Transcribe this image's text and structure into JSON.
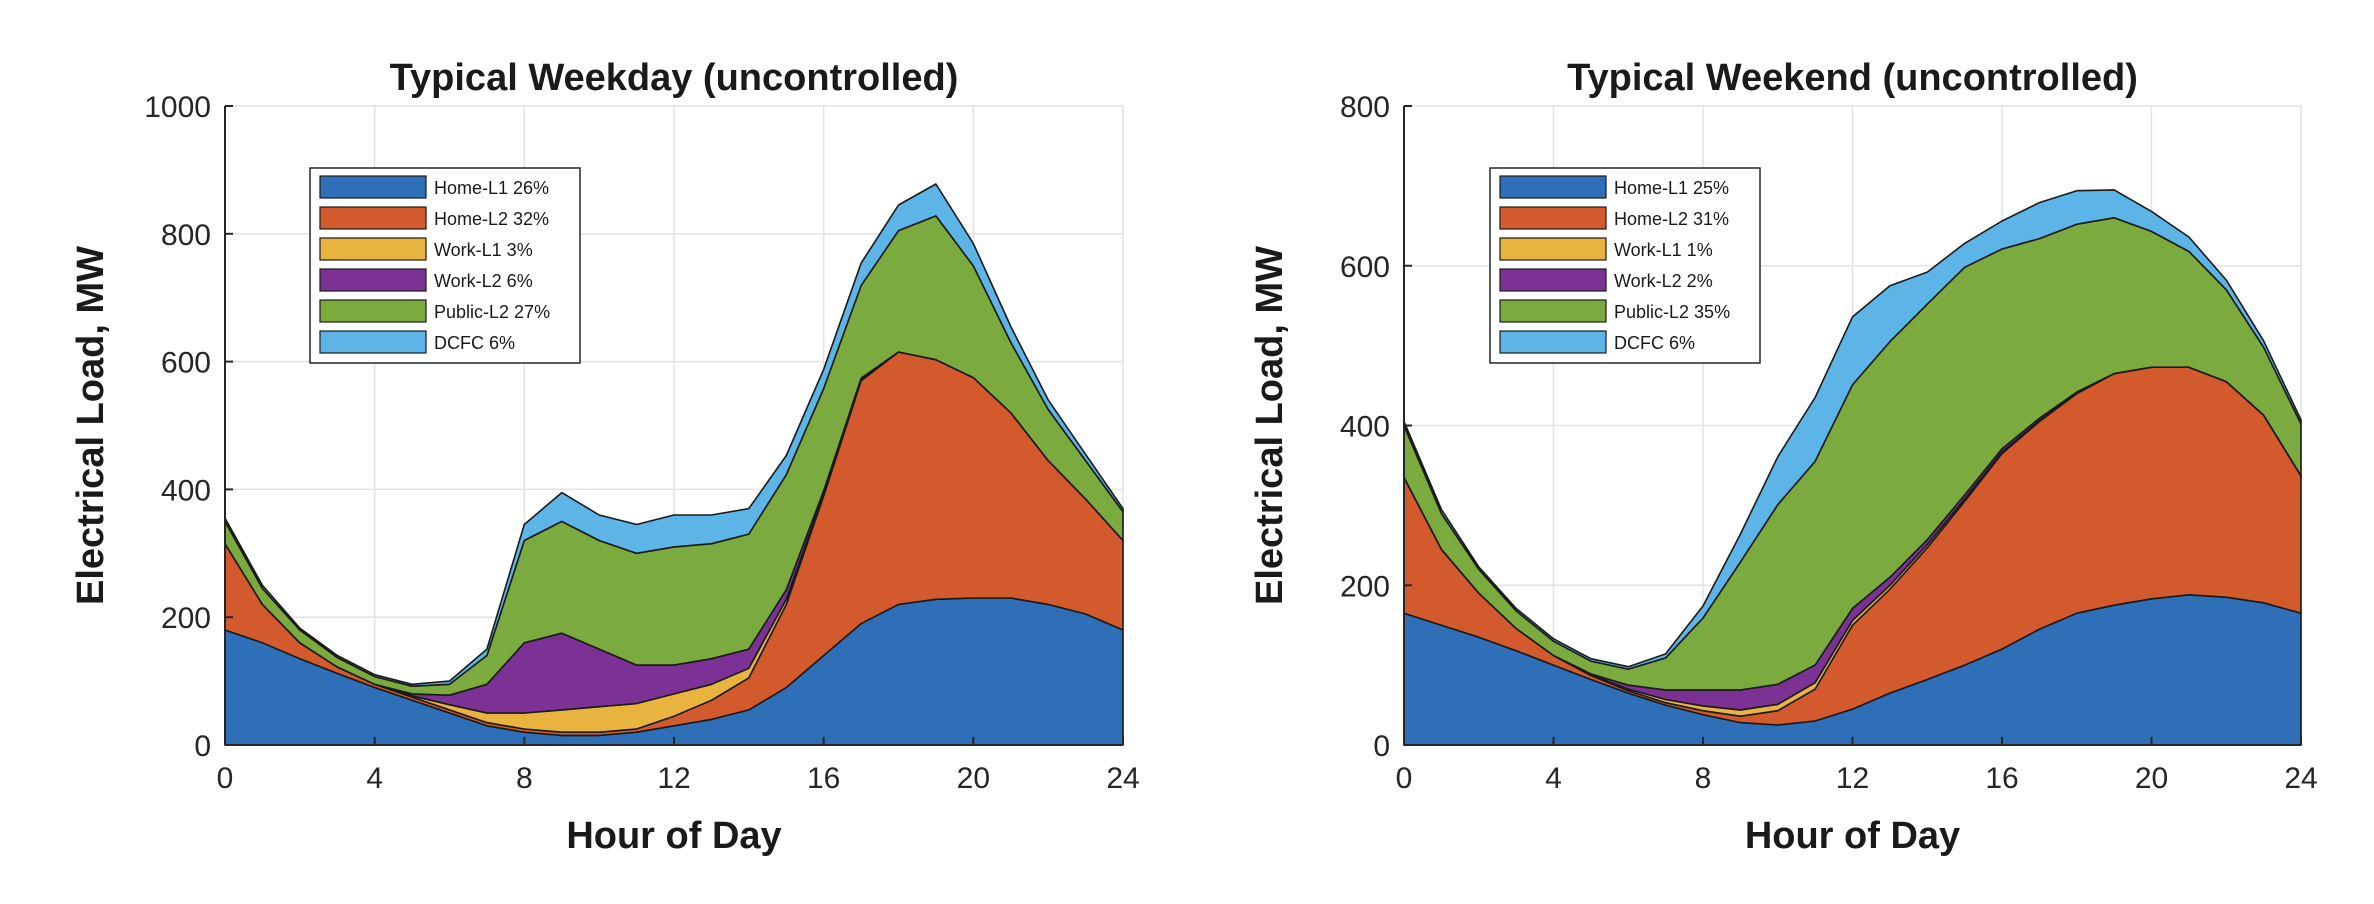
{
  "chart_data": [
    {
      "type": "area",
      "title": "Typical Weekday (uncontrolled)",
      "xlabel": "Hour of Day",
      "ylabel": "Electrical Load, MW",
      "xlim": [
        0,
        24
      ],
      "ylim": [
        0,
        1000
      ],
      "xticks": [
        0,
        4,
        8,
        12,
        16,
        20,
        24
      ],
      "yticks": [
        0,
        200,
        400,
        600,
        800,
        1000
      ],
      "grid": true,
      "stacked": true,
      "legend_position": "top-left",
      "x": [
        0,
        1,
        2,
        3,
        4,
        5,
        6,
        7,
        8,
        9,
        10,
        11,
        12,
        13,
        14,
        15,
        16,
        17,
        18,
        19,
        20,
        21,
        22,
        23,
        24
      ],
      "series": [
        {
          "name": "Home-L1",
          "label": "Home-L1 26%",
          "color": "#2E6FB7",
          "values": [
            180,
            160,
            135,
            112,
            90,
            70,
            50,
            30,
            20,
            15,
            15,
            20,
            30,
            40,
            55,
            90,
            140,
            190,
            220,
            228,
            230,
            230,
            220,
            205,
            180
          ]
        },
        {
          "name": "Home-L2",
          "label": "Home-L2 32%",
          "color": "#D35A2C",
          "values": [
            135,
            60,
            25,
            10,
            5,
            5,
            5,
            5,
            5,
            5,
            5,
            5,
            15,
            30,
            50,
            130,
            250,
            380,
            395,
            375,
            345,
            290,
            225,
            180,
            140
          ]
        },
        {
          "name": "Work-L1",
          "label": "Work-L1 3%",
          "color": "#E8B33F",
          "values": [
            0,
            0,
            0,
            0,
            0,
            2,
            8,
            15,
            25,
            35,
            40,
            40,
            35,
            25,
            15,
            8,
            3,
            2,
            0,
            0,
            0,
            0,
            0,
            0,
            0
          ]
        },
        {
          "name": "Work-L2",
          "label": "Work-L2 6%",
          "color": "#7B3294",
          "values": [
            0,
            0,
            0,
            0,
            0,
            3,
            15,
            45,
            110,
            120,
            90,
            60,
            45,
            40,
            30,
            15,
            5,
            2,
            0,
            0,
            0,
            0,
            0,
            0,
            0
          ]
        },
        {
          "name": "Public-L2",
          "label": "Public-L2 27%",
          "color": "#7BAA3E",
          "values": [
            35,
            25,
            20,
            15,
            12,
            12,
            17,
            45,
            160,
            175,
            170,
            175,
            185,
            180,
            180,
            180,
            160,
            145,
            190,
            225,
            175,
            110,
            80,
            60,
            45
          ]
        },
        {
          "name": "DCFC",
          "label": "DCFC 6%",
          "color": "#5DB4E6",
          "values": [
            5,
            5,
            3,
            3,
            3,
            3,
            5,
            10,
            25,
            45,
            40,
            45,
            50,
            45,
            40,
            30,
            30,
            35,
            40,
            50,
            35,
            25,
            15,
            10,
            5
          ]
        }
      ]
    },
    {
      "type": "area",
      "title": "Typical Weekend (uncontrolled)",
      "xlabel": "Hour of Day",
      "ylabel": "Electrical Load, MW",
      "xlim": [
        0,
        24
      ],
      "ylim": [
        0,
        800
      ],
      "xticks": [
        0,
        4,
        8,
        12,
        16,
        20,
        24
      ],
      "yticks": [
        0,
        200,
        400,
        600,
        800
      ],
      "grid": true,
      "stacked": true,
      "legend_position": "top-left",
      "x": [
        0,
        1,
        2,
        3,
        4,
        5,
        6,
        7,
        8,
        9,
        10,
        11,
        12,
        13,
        14,
        15,
        16,
        17,
        18,
        19,
        20,
        21,
        22,
        23,
        24
      ],
      "series": [
        {
          "name": "Home-L1",
          "label": "Home-L1 25%",
          "color": "#2E6FB7",
          "values": [
            165,
            150,
            135,
            118,
            100,
            82,
            65,
            50,
            38,
            28,
            25,
            30,
            45,
            65,
            82,
            100,
            120,
            145,
            165,
            175,
            183,
            188,
            185,
            178,
            165
          ]
        },
        {
          "name": "Home-L2",
          "label": "Home-L2 31%",
          "color": "#D35A2C",
          "values": [
            170,
            95,
            55,
            28,
            12,
            5,
            3,
            3,
            5,
            8,
            18,
            40,
            105,
            130,
            165,
            205,
            245,
            260,
            275,
            290,
            290,
            285,
            270,
            235,
            172
          ]
        },
        {
          "name": "Work-L1",
          "label": "Work-L1 1%",
          "color": "#E8B33F",
          "values": [
            0,
            0,
            0,
            0,
            0,
            1,
            2,
            4,
            6,
            8,
            8,
            8,
            6,
            5,
            4,
            3,
            2,
            1,
            0,
            0,
            0,
            0,
            0,
            0,
            0
          ]
        },
        {
          "name": "Work-L2",
          "label": "Work-L2 2%",
          "color": "#7B3294",
          "values": [
            0,
            0,
            0,
            0,
            0,
            1,
            5,
            12,
            20,
            25,
            25,
            22,
            15,
            10,
            6,
            5,
            4,
            3,
            2,
            0,
            0,
            0,
            0,
            0,
            0
          ]
        },
        {
          "name": "Public-L2",
          "label": "Public-L2 35%",
          "color": "#7BAA3E",
          "values": [
            65,
            45,
            30,
            22,
            18,
            16,
            20,
            40,
            90,
            160,
            225,
            255,
            280,
            295,
            295,
            285,
            250,
            225,
            210,
            195,
            170,
            145,
            115,
            85,
            65
          ]
        },
        {
          "name": "DCFC",
          "label": "DCFC 6%",
          "color": "#5DB4E6",
          "values": [
            5,
            5,
            3,
            3,
            3,
            3,
            3,
            5,
            15,
            35,
            60,
            80,
            85,
            70,
            40,
            30,
            35,
            45,
            42,
            35,
            25,
            18,
            12,
            8,
            5
          ]
        }
      ]
    }
  ]
}
